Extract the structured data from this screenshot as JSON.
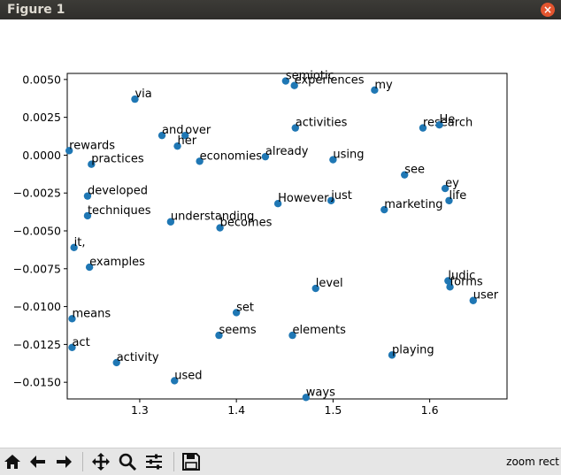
{
  "window": {
    "title": "Figure 1",
    "close_icon": "close-icon"
  },
  "toolbar": {
    "buttons": [
      {
        "name": "home-button",
        "icon": "home-icon"
      },
      {
        "name": "back-button",
        "icon": "arrow-left-icon"
      },
      {
        "name": "forward-button",
        "icon": "arrow-right-icon"
      },
      {
        "name": "pan-button",
        "icon": "move-icon"
      },
      {
        "name": "zoom-button",
        "icon": "zoom-icon"
      },
      {
        "name": "subplots-button",
        "icon": "sliders-icon"
      },
      {
        "name": "save-button",
        "icon": "save-icon"
      }
    ],
    "status": "zoom rect"
  },
  "chart_data": {
    "type": "scatter",
    "xlim": [
      1.225,
      1.68
    ],
    "ylim": [
      -0.0161,
      0.0054
    ],
    "xticks": [
      1.3,
      1.4,
      1.5,
      1.6
    ],
    "xtick_labels": [
      "1.3",
      "1.4",
      "1.5",
      "1.6"
    ],
    "yticks": [
      0.005,
      0.0025,
      0.0,
      -0.0025,
      -0.005,
      -0.0075,
      -0.01,
      -0.0125,
      -0.015
    ],
    "ytick_labels": [
      "0.0050",
      "0.0025",
      "0.0000",
      "−0.0025",
      "−0.0050",
      "−0.0075",
      "−0.0100",
      "−0.0125",
      "−0.0150"
    ],
    "marker_color": "#1f77b4",
    "grid": false,
    "points": [
      {
        "label": "semiotic",
        "x": 1.451,
        "y": 0.0049
      },
      {
        "label": "experiences",
        "x": 1.46,
        "y": 0.0046
      },
      {
        "label": "my",
        "x": 1.543,
        "y": 0.0043
      },
      {
        "label": "via",
        "x": 1.295,
        "y": 0.0037
      },
      {
        "label": "activities",
        "x": 1.461,
        "y": 0.0018
      },
      {
        "label": "research",
        "x": 1.593,
        "y": 0.0018
      },
      {
        "label": "He",
        "x": 1.61,
        "y": 0.002
      },
      {
        "label": "and",
        "x": 1.323,
        "y": 0.0013
      },
      {
        "label": "over",
        "x": 1.347,
        "y": 0.0013
      },
      {
        "label": "her",
        "x": 1.339,
        "y": 0.0006
      },
      {
        "label": "rewards",
        "x": 1.227,
        "y": 0.0003
      },
      {
        "label": "already",
        "x": 1.43,
        "y": -0.0001
      },
      {
        "label": "using",
        "x": 1.5,
        "y": -0.0003
      },
      {
        "label": "practices",
        "x": 1.25,
        "y": -0.0006
      },
      {
        "label": "economies",
        "x": 1.362,
        "y": -0.0004
      },
      {
        "label": "see",
        "x": 1.574,
        "y": -0.0013
      },
      {
        "label": "ey",
        "x": 1.616,
        "y": -0.0022
      },
      {
        "label": "life",
        "x": 1.62,
        "y": -0.003
      },
      {
        "label": "developed",
        "x": 1.246,
        "y": -0.0027
      },
      {
        "label": "just",
        "x": 1.498,
        "y": -0.003
      },
      {
        "label": "However",
        "x": 1.443,
        "y": -0.0032
      },
      {
        "label": "marketing",
        "x": 1.553,
        "y": -0.0036
      },
      {
        "label": "techniques",
        "x": 1.246,
        "y": -0.004
      },
      {
        "label": "understanding",
        "x": 1.332,
        "y": -0.0044
      },
      {
        "label": "becomes",
        "x": 1.383,
        "y": -0.0048
      },
      {
        "label": "it,",
        "x": 1.232,
        "y": -0.0061
      },
      {
        "label": "examples",
        "x": 1.248,
        "y": -0.0074
      },
      {
        "label": "ludic",
        "x": 1.619,
        "y": -0.0083
      },
      {
        "label": "forms",
        "x": 1.621,
        "y": -0.0087
      },
      {
        "label": "level",
        "x": 1.482,
        "y": -0.0088
      },
      {
        "label": "user",
        "x": 1.645,
        "y": -0.0096
      },
      {
        "label": "set",
        "x": 1.4,
        "y": -0.0104
      },
      {
        "label": "means",
        "x": 1.23,
        "y": -0.0108
      },
      {
        "label": "seems",
        "x": 1.382,
        "y": -0.0119
      },
      {
        "label": "elements",
        "x": 1.458,
        "y": -0.0119
      },
      {
        "label": "act",
        "x": 1.23,
        "y": -0.0127
      },
      {
        "label": "playing",
        "x": 1.561,
        "y": -0.0132
      },
      {
        "label": "activity",
        "x": 1.276,
        "y": -0.0137
      },
      {
        "label": "used",
        "x": 1.336,
        "y": -0.0149
      },
      {
        "label": "ways",
        "x": 1.472,
        "y": -0.016
      }
    ]
  }
}
